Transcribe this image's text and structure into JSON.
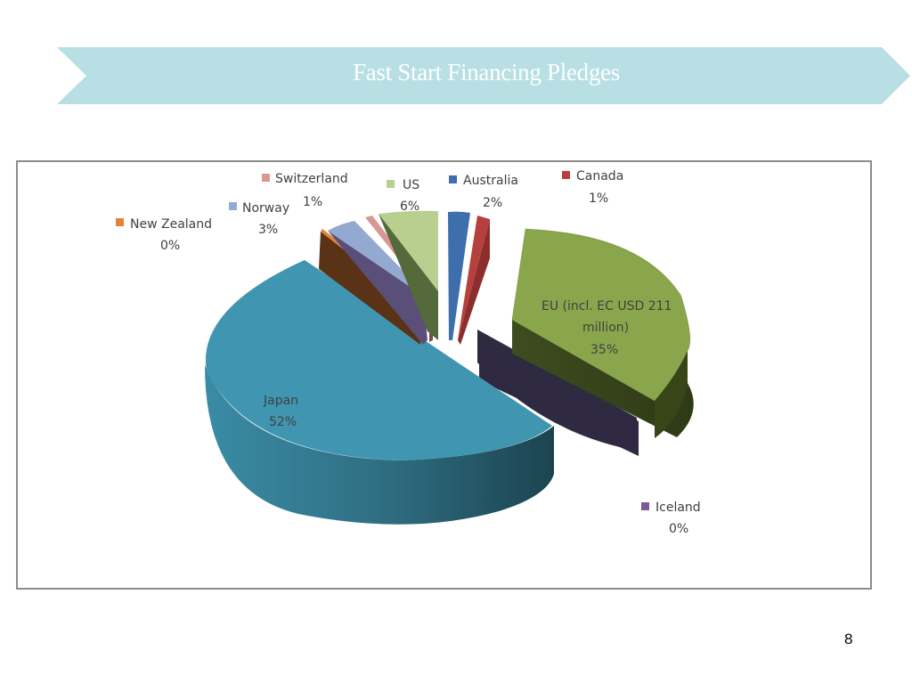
{
  "slide": {
    "title": "Fast Start Financing Pledges",
    "page_number": "8",
    "banner_color": "#b7dfe4"
  },
  "chart_data": {
    "type": "pie",
    "title": "",
    "slices": [
      {
        "name": "Japan",
        "value": 52,
        "label": "52%",
        "color": "#4096b0"
      },
      {
        "name": "New Zealand",
        "value": 0,
        "label": "0%",
        "color": "#e5823a"
      },
      {
        "name": "Norway",
        "value": 3,
        "label": "3%",
        "color": "#93a9d0"
      },
      {
        "name": "Switzerland",
        "value": 1,
        "label": "1%",
        "color": "#d99794"
      },
      {
        "name": "US",
        "value": 6,
        "label": "6%",
        "color": "#b8cf90"
      },
      {
        "name": "Australia",
        "value": 2,
        "label": "2%",
        "color": "#3d6fad"
      },
      {
        "name": "Canada",
        "value": 1,
        "label": "1%",
        "color": "#b5403d"
      },
      {
        "name": "EU (incl. EC USD 211 million)",
        "value": 35,
        "label": "35%",
        "color": "#8aa64c"
      },
      {
        "name": "Iceland",
        "value": 0,
        "label": "0%",
        "color": "#7c5c98"
      }
    ],
    "style": "3d-exploded"
  }
}
